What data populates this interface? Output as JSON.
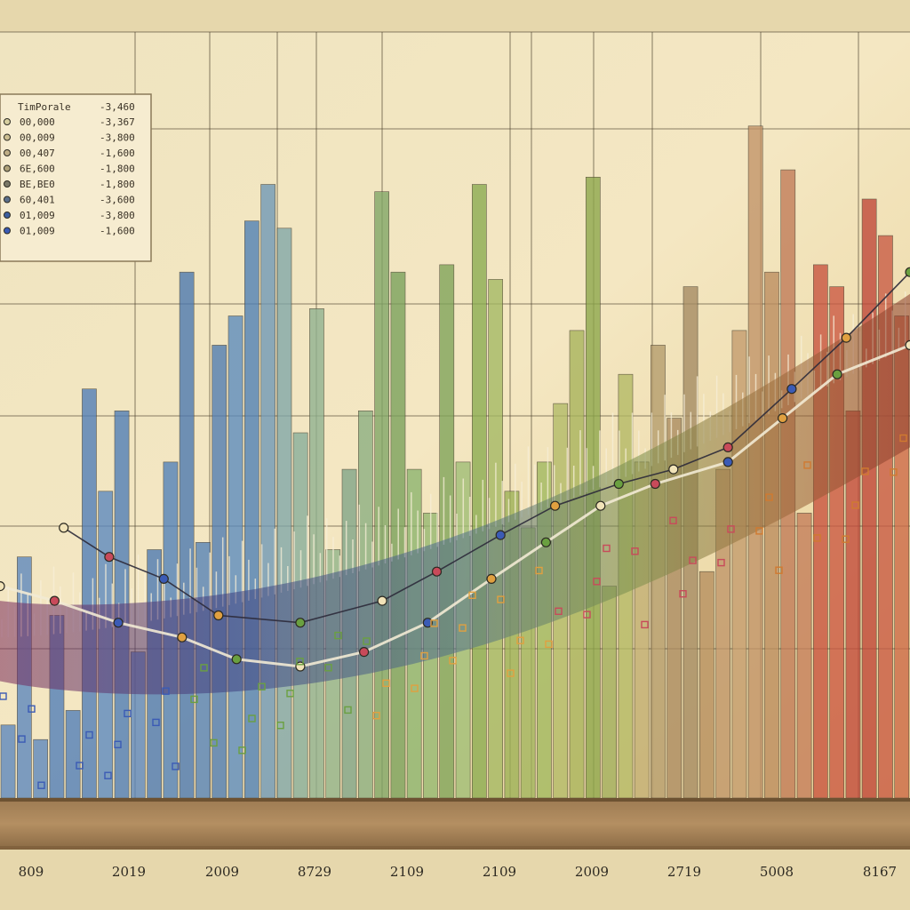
{
  "chart_data": {
    "type": "bar",
    "title": "",
    "xlabel": "",
    "ylabel": "",
    "grid": true,
    "legend_placement": "top-left",
    "x_tick_labels": [
      "809",
      "2019",
      "2009",
      "8729",
      "2109",
      "2109",
      "2009",
      "2719",
      "5008",
      "8167"
    ],
    "ylim": [
      0,
      100
    ],
    "legend": {
      "title": "TimPorale",
      "title_value": "-3,460",
      "entries": [
        {
          "label": "00,000",
          "value": "-3,367",
          "color": "#d7cfa0"
        },
        {
          "label": "00,009",
          "value": "-3,800",
          "color": "#cdbf92"
        },
        {
          "label": "00,407",
          "value": "-1,600",
          "color": "#bfae86"
        },
        {
          "label": "6E,600",
          "value": "-1,800",
          "color": "#b0a37a"
        },
        {
          "label": "BE,BE0",
          "value": "-1,800",
          "color": "#7a7868"
        },
        {
          "label": "60,401",
          "value": "-3,600",
          "color": "#5b6f8a"
        },
        {
          "label": "01,009",
          "value": "-3,800",
          "color": "#3e5f9e"
        },
        {
          "label": "01,009",
          "value": "-1,600",
          "color": "#3b5bb5"
        }
      ]
    },
    "bars": {
      "values": [
        10,
        33,
        8,
        25,
        12,
        56,
        42,
        53,
        20,
        34,
        46,
        72,
        35,
        62,
        66,
        79,
        84,
        78,
        50,
        67,
        34,
        45,
        53,
        83,
        72,
        45,
        39,
        73,
        46,
        84,
        71,
        42,
        37,
        46,
        54,
        64,
        85,
        29,
        58,
        46,
        62,
        52,
        70,
        31,
        45,
        64,
        92,
        72,
        86,
        39,
        73,
        70,
        53,
        82,
        77,
        66
      ],
      "colors": [
        "#5b86bd",
        "#5b86bd",
        "#5b86bd",
        "#4f7db8",
        "#4f7db8",
        "#4f7db8",
        "#5a88bf",
        "#4d7cb6",
        "#5b86bd",
        "#4b78b2",
        "#5080b8",
        "#4a77b0",
        "#5481b6",
        "#4e7bb1",
        "#5a8abd",
        "#4d7fb5",
        "#6d97b6",
        "#7fa6a8",
        "#86ad9a",
        "#8fb18f",
        "#90b38a",
        "#7fa487",
        "#8aae80",
        "#7fa565",
        "#78a05a",
        "#8bb46d",
        "#93b76f",
        "#7ea358",
        "#9ebd74",
        "#89ab4f",
        "#a3b862",
        "#9bb055",
        "#a0b45c",
        "#9fb85e",
        "#b1ba66",
        "#a7b35a",
        "#8ca64a",
        "#a0ae5c",
        "#b3b964",
        "#c1ae72",
        "#b49c6c",
        "#aa8a60",
        "#a48a62",
        "#b58e5e",
        "#bf9569",
        "#c39b6d",
        "#c19368",
        "#bb8c5e",
        "#c07a57",
        "#c47d5a",
        "#c8523e",
        "#cb5842",
        "#c24a3b",
        "#bf4537",
        "#c95a44",
        "#cd6a48"
      ]
    },
    "line_series": [
      {
        "x": [
          0.07,
          0.12,
          0.18,
          0.24,
          0.33,
          0.42,
          0.48,
          0.55,
          0.61,
          0.68,
          0.74,
          0.8,
          0.87,
          0.93,
          1.0
        ],
        "y": [
          37,
          33,
          30,
          25,
          24,
          27,
          31,
          36,
          40,
          43,
          45,
          48,
          56,
          63,
          72
        ]
      },
      {
        "x": [
          0.0,
          0.06,
          0.13,
          0.2,
          0.26,
          0.33,
          0.4,
          0.47,
          0.54,
          0.6,
          0.66,
          0.72,
          0.8,
          0.86,
          0.92,
          1.0
        ],
        "y": [
          29,
          27,
          24,
          22,
          19,
          18,
          20,
          24,
          30,
          35,
          40,
          43,
          46,
          52,
          58,
          62
        ]
      }
    ]
  }
}
